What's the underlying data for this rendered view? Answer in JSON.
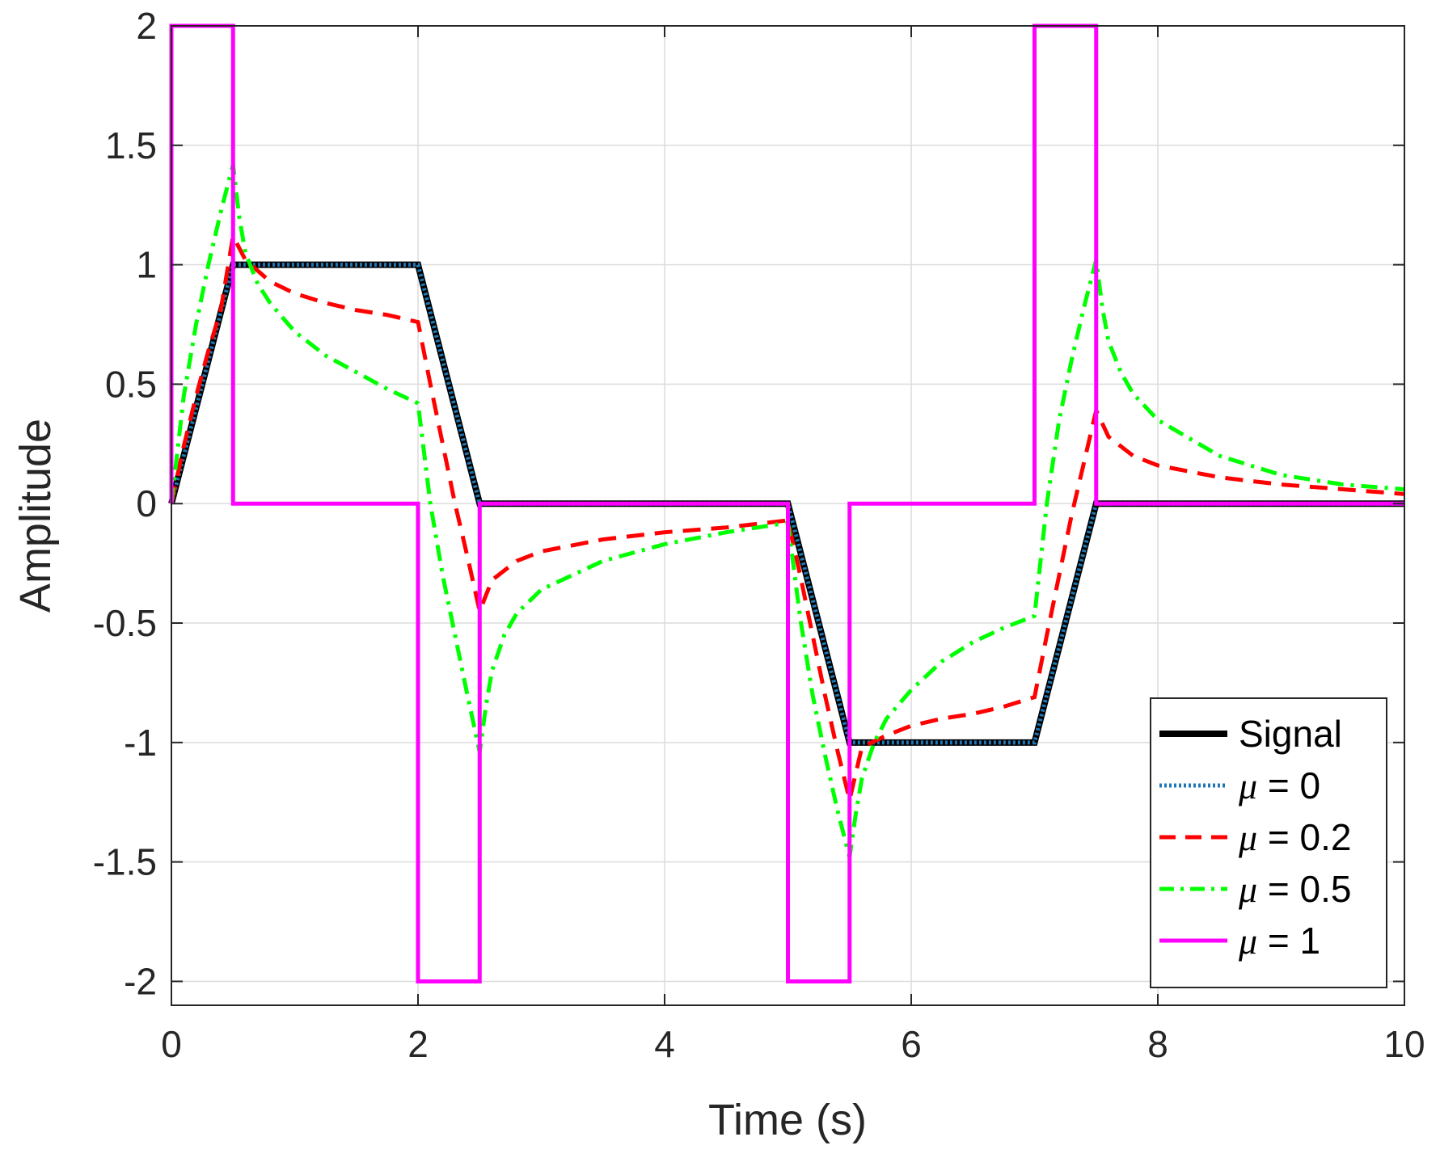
{
  "chart_data": {
    "type": "line",
    "title": "",
    "xlabel": "Time (s)",
    "ylabel": "Amplitude",
    "xlim": [
      0,
      10
    ],
    "ylim": [
      -2.1,
      2.0
    ],
    "grid": true,
    "x_ticks": [
      0,
      2,
      4,
      6,
      8,
      10
    ],
    "x_tick_labels": [
      "0",
      "2",
      "4",
      "6",
      "8",
      "10"
    ],
    "y_ticks": [
      -2,
      -1.5,
      -1,
      -0.5,
      0,
      0.5,
      1,
      1.5,
      2
    ],
    "y_tick_labels": [
      "-2",
      "-1.5",
      "-1",
      "-0.5",
      "0",
      "0.5",
      "1",
      "1.5",
      "2"
    ],
    "legend_position": "bottom-right",
    "legend": [
      {
        "symbol": "",
        "label": "Signal"
      },
      {
        "symbol": "μ",
        "label": " = 0"
      },
      {
        "symbol": "μ",
        "label": " = 0.2"
      },
      {
        "symbol": "μ",
        "label": " = 0.5"
      },
      {
        "symbol": "μ",
        "label": " = 1"
      }
    ],
    "series": [
      {
        "name": "Signal",
        "color": "#000000",
        "style": "solid",
        "x": [
          0,
          0.5,
          2,
          2.5,
          5,
          5.5,
          7,
          7.5,
          10
        ],
        "y": [
          0,
          1,
          1,
          0,
          0,
          -1,
          -1,
          0,
          0
        ]
      },
      {
        "name": "μ = 0",
        "color": "#1f77b4",
        "style": "dotted",
        "x": [
          0,
          0.5,
          2,
          2.5,
          5,
          5.5,
          7,
          7.5,
          10
        ],
        "y": [
          0,
          1,
          1,
          0,
          0,
          -1,
          -1,
          0,
          0
        ]
      },
      {
        "name": "μ = 0.2",
        "color": "#ff0000",
        "style": "dashed",
        "x": [
          0,
          0.1,
          0.2,
          0.3,
          0.4,
          0.5,
          0.6,
          0.8,
          1.0,
          1.25,
          1.5,
          1.75,
          2.0,
          2.1,
          2.2,
          2.3,
          2.4,
          2.5,
          2.6,
          2.8,
          3.0,
          3.5,
          4.0,
          4.5,
          5.0,
          5.1,
          5.2,
          5.3,
          5.4,
          5.5,
          5.6,
          5.8,
          6.0,
          6.25,
          6.5,
          6.75,
          7.0,
          7.1,
          7.2,
          7.3,
          7.4,
          7.5,
          7.6,
          7.8,
          8.0,
          8.5,
          9.0,
          9.5,
          10.0
        ],
        "y": [
          0,
          0.24,
          0.45,
          0.64,
          0.81,
          1.12,
          1.02,
          0.93,
          0.88,
          0.84,
          0.81,
          0.79,
          0.76,
          0.5,
          0.25,
          0.0,
          -0.22,
          -0.45,
          -0.32,
          -0.24,
          -0.2,
          -0.15,
          -0.12,
          -0.1,
          -0.07,
          -0.3,
          -0.55,
          -0.8,
          -1.03,
          -1.24,
          -1.02,
          -0.97,
          -0.93,
          -0.9,
          -0.88,
          -0.85,
          -0.81,
          -0.55,
          -0.3,
          -0.05,
          0.17,
          0.39,
          0.28,
          0.2,
          0.16,
          0.11,
          0.08,
          0.06,
          0.04
        ]
      },
      {
        "name": "μ = 0.5",
        "color": "#00ff00",
        "style": "dashdot",
        "x": [
          0,
          0.1,
          0.2,
          0.3,
          0.4,
          0.5,
          0.55,
          0.6,
          0.7,
          0.8,
          1.0,
          1.25,
          1.5,
          1.75,
          2.0,
          2.1,
          2.2,
          2.3,
          2.4,
          2.5,
          2.55,
          2.6,
          2.7,
          2.8,
          3.0,
          3.5,
          4.0,
          4.5,
          5.0,
          5.1,
          5.2,
          5.3,
          5.4,
          5.5,
          5.55,
          5.6,
          5.7,
          5.8,
          6.0,
          6.25,
          6.5,
          6.75,
          7.0,
          7.1,
          7.2,
          7.3,
          7.4,
          7.5,
          7.55,
          7.6,
          7.7,
          7.8,
          8.0,
          8.5,
          9.0,
          9.5,
          10.0
        ],
        "y": [
          0,
          0.45,
          0.75,
          1.0,
          1.22,
          1.42,
          1.2,
          1.05,
          0.92,
          0.84,
          0.72,
          0.62,
          0.55,
          0.48,
          0.42,
          0.0,
          -0.3,
          -0.55,
          -0.8,
          -1.04,
          -0.85,
          -0.7,
          -0.55,
          -0.46,
          -0.36,
          -0.24,
          -0.17,
          -0.12,
          -0.08,
          -0.48,
          -0.8,
          -1.05,
          -1.28,
          -1.48,
          -1.3,
          -1.15,
          -1.0,
          -0.9,
          -0.78,
          -0.66,
          -0.58,
          -0.52,
          -0.47,
          0.0,
          0.35,
          0.6,
          0.82,
          1.02,
          0.82,
          0.68,
          0.55,
          0.46,
          0.35,
          0.2,
          0.12,
          0.08,
          0.06
        ]
      },
      {
        "name": "μ = 1",
        "color": "#ff00ff",
        "style": "solid",
        "x": [
          0,
          0,
          0.5,
          0.5,
          2,
          2,
          2.5,
          2.5,
          5,
          5,
          5.5,
          5.5,
          7,
          7,
          7.5,
          7.5,
          10
        ],
        "y": [
          0,
          2,
          2,
          0,
          0,
          -2,
          -2,
          0,
          0,
          -2,
          -2,
          0,
          0,
          2,
          2,
          0,
          0
        ]
      }
    ]
  }
}
